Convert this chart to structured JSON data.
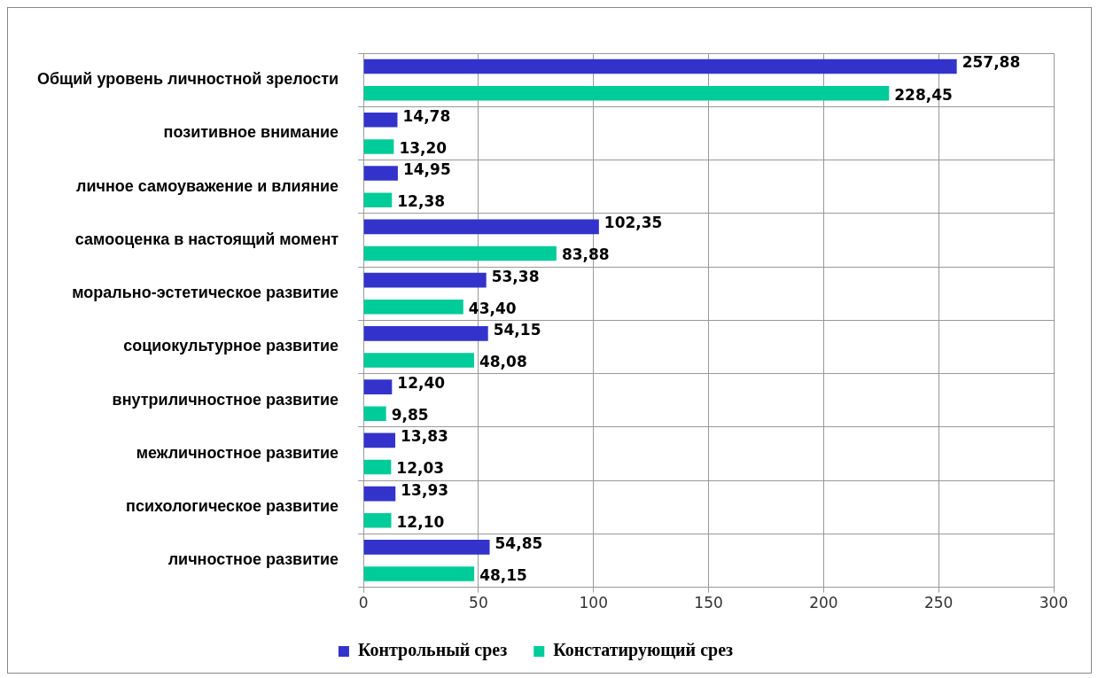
{
  "chart_data": {
    "type": "bar",
    "orientation": "horizontal",
    "categories": [
      "Общий уровень личностной зрелости",
      "позитивное внимание",
      "личное самоуважение и влияние",
      "самооценка в настоящий момент",
      "морально-эстетическое развитие",
      "социокультурное развитие",
      "внутриличностное развитие",
      "межличностное развитие",
      "психологическое развитие",
      "личностное развитие"
    ],
    "series": [
      {
        "name": "Контрольный срез",
        "color": "#3333cc",
        "values": [
          257.88,
          14.78,
          14.95,
          102.35,
          53.38,
          54.15,
          12.4,
          13.83,
          13.93,
          54.85
        ],
        "value_labels": [
          "257,88",
          "14,78",
          "14,95",
          "102,35",
          "53,38",
          "54,15",
          "12,40",
          "13,83",
          "13,93",
          "54,85"
        ]
      },
      {
        "name": "Констатирующий срез",
        "color": "#00cc99",
        "values": [
          228.45,
          13.2,
          12.38,
          83.88,
          43.4,
          48.08,
          9.85,
          12.03,
          12.1,
          48.15
        ],
        "value_labels": [
          "228,45",
          "13,20",
          "12,38",
          "83,88",
          "43,40",
          "48,08",
          "9,85",
          "12,03",
          "12,10",
          "48,15"
        ]
      }
    ],
    "xlim": [
      0,
      300
    ],
    "xticks": [
      0,
      50,
      100,
      150,
      200,
      250,
      300
    ],
    "grid": true,
    "legend": "bottom"
  }
}
